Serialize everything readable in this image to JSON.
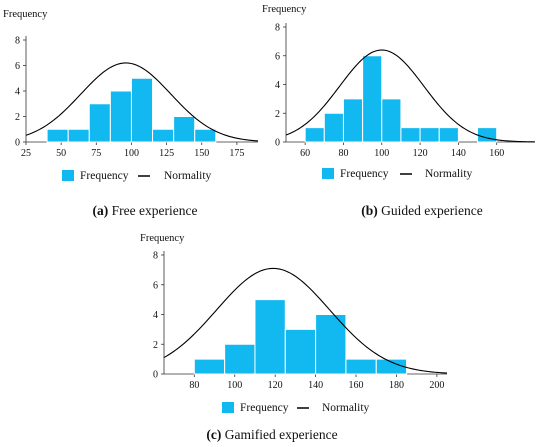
{
  "chart_data": [
    {
      "type": "bar",
      "ylabel": "Frequency",
      "bins": [
        [
          40,
          55
        ],
        [
          55,
          70
        ],
        [
          70,
          85
        ],
        [
          85,
          100
        ],
        [
          100,
          115
        ],
        [
          115,
          130
        ],
        [
          130,
          145
        ],
        [
          145,
          160
        ],
        [
          160,
          175
        ]
      ],
      "values": [
        1,
        1,
        3,
        4,
        5,
        1,
        2,
        1,
        0
      ],
      "xlim": [
        25,
        190
      ],
      "ylim": [
        0,
        8
      ],
      "xticks": [
        25,
        50,
        75,
        100,
        125,
        150,
        175
      ],
      "yticks": [
        0,
        2,
        4,
        6,
        8
      ],
      "normal_curve": {
        "mean": 96,
        "sd": 32,
        "peak": 6.2
      },
      "legend": [
        "Frequency",
        "Normality"
      ],
      "caption_letter": "(a)",
      "caption_text": "Free experience",
      "colors": {
        "bar": "#12b8f0",
        "curve": "#000000"
      }
    },
    {
      "type": "bar",
      "ylabel": "Frequency",
      "bins": [
        [
          60,
          70
        ],
        [
          70,
          80
        ],
        [
          80,
          90
        ],
        [
          90,
          100
        ],
        [
          100,
          110
        ],
        [
          110,
          120
        ],
        [
          120,
          130
        ],
        [
          130,
          140
        ],
        [
          140,
          150
        ],
        [
          150,
          160
        ]
      ],
      "values": [
        1,
        2,
        3,
        6,
        3,
        1,
        1,
        1,
        0,
        1
      ],
      "xlim": [
        50,
        180
      ],
      "ylim": [
        0,
        8
      ],
      "xticks": [
        60,
        80,
        100,
        120,
        140,
        160
      ],
      "yticks": [
        0,
        2,
        4,
        6,
        8
      ],
      "normal_curve": {
        "mean": 100,
        "sd": 22,
        "peak": 6.4
      },
      "legend": [
        "Frequency",
        "Normality"
      ],
      "caption_letter": "(b)",
      "caption_text": "Guided experience",
      "colors": {
        "bar": "#12b8f0",
        "curve": "#000000"
      }
    },
    {
      "type": "bar",
      "ylabel": "Frequency",
      "bins": [
        [
          80,
          95
        ],
        [
          95,
          110
        ],
        [
          110,
          125
        ],
        [
          125,
          140
        ],
        [
          140,
          155
        ],
        [
          155,
          170
        ],
        [
          170,
          185
        ]
      ],
      "values": [
        1,
        2,
        5,
        3,
        4,
        1,
        1
      ],
      "xlim": [
        65,
        205
      ],
      "ylim": [
        0,
        8
      ],
      "xticks": [
        80,
        100,
        120,
        140,
        160,
        180,
        200
      ],
      "yticks": [
        0,
        2,
        4,
        6,
        8
      ],
      "normal_curve": {
        "mean": 119,
        "sd": 28,
        "peak": 7.1
      },
      "legend": [
        "Frequency",
        "Normality"
      ],
      "caption_letter": "(c)",
      "caption_text": "Gamified experience",
      "colors": {
        "bar": "#12b8f0",
        "curve": "#000000"
      }
    }
  ]
}
